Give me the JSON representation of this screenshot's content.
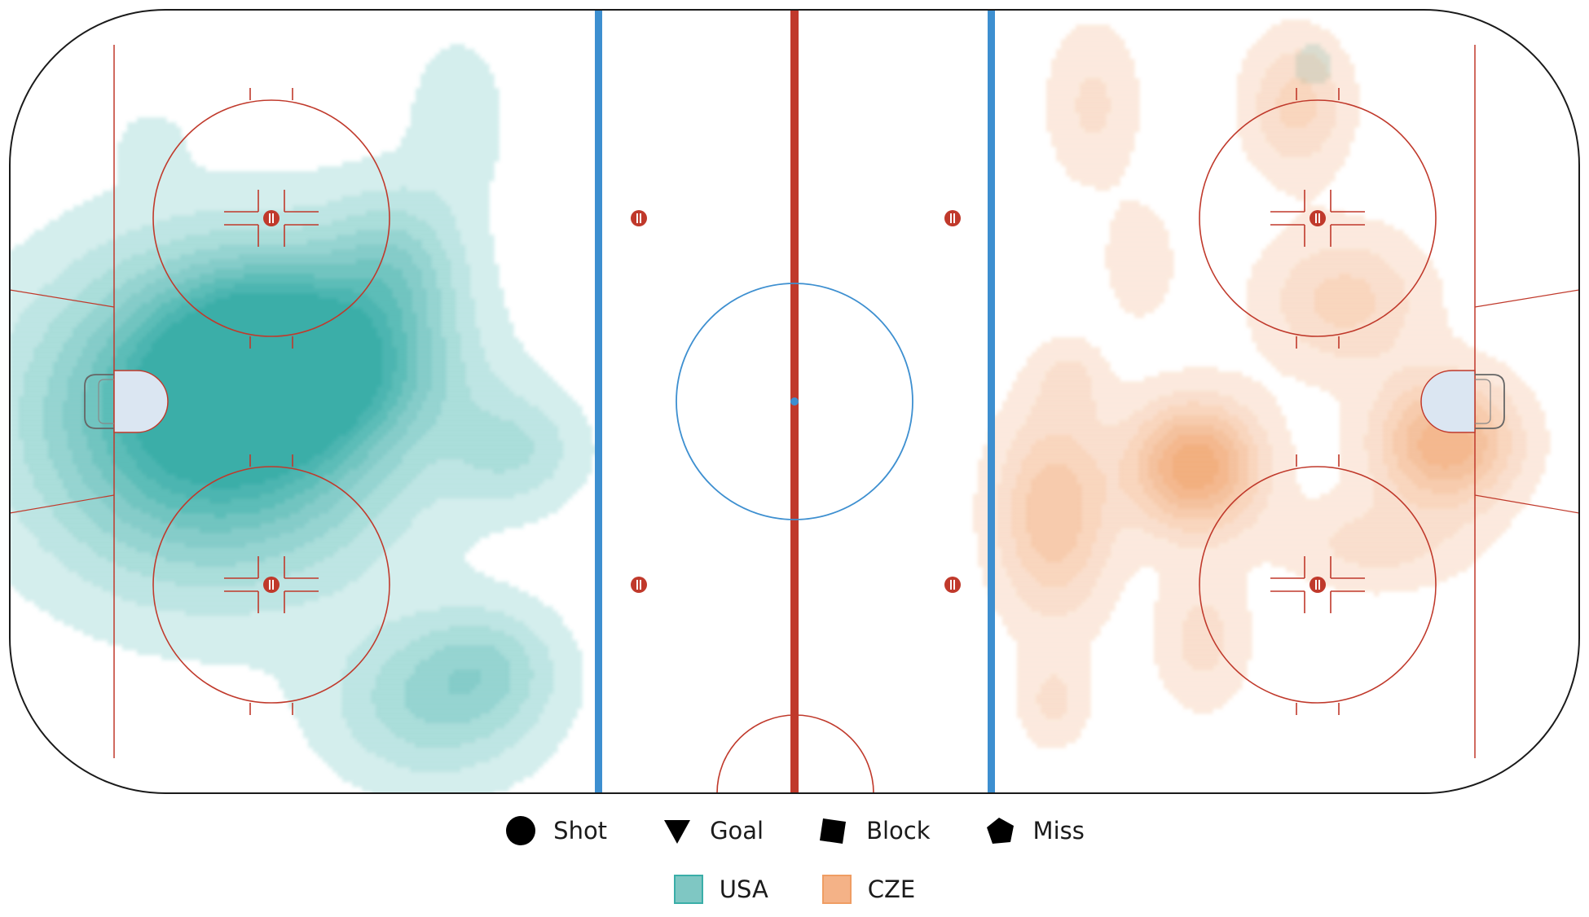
{
  "chart_data": {
    "type": "heatmap",
    "subtype": "hockey-rink shot density",
    "teams": [
      {
        "name": "USA",
        "color": "#3aaea8",
        "attacks": "left",
        "hotspots": [
          {
            "x": 0.13,
            "y": 0.52,
            "intensity": 1.0,
            "sx": 0.075,
            "sy": 0.13
          },
          {
            "x": 0.175,
            "y": 0.44,
            "intensity": 0.75,
            "sx": 0.05,
            "sy": 0.08
          },
          {
            "x": 0.245,
            "y": 0.33,
            "intensity": 0.35,
            "sx": 0.03,
            "sy": 0.07
          },
          {
            "x": 0.32,
            "y": 0.56,
            "intensity": 0.25,
            "sx": 0.03,
            "sy": 0.05
          },
          {
            "x": 0.27,
            "y": 0.88,
            "intensity": 0.35,
            "sx": 0.045,
            "sy": 0.07
          },
          {
            "x": 0.305,
            "y": 0.83,
            "intensity": 0.22,
            "sx": 0.03,
            "sy": 0.05
          },
          {
            "x": 0.285,
            "y": 0.14,
            "intensity": 0.15,
            "sx": 0.02,
            "sy": 0.07
          },
          {
            "x": 0.23,
            "y": 0.47,
            "intensity": 0.15,
            "sx": 0.05,
            "sy": 0.05
          },
          {
            "x": 0.09,
            "y": 0.17,
            "intensity": 0.1,
            "sx": 0.015,
            "sy": 0.03
          },
          {
            "x": 0.83,
            "y": 0.07,
            "intensity": 0.1,
            "sx": 0.012,
            "sy": 0.025
          },
          {
            "x": 0.915,
            "y": 0.5,
            "intensity": 0.1,
            "sx": 0.012,
            "sy": 0.03
          }
        ]
      },
      {
        "name": "CZE",
        "color": "#ef9d63",
        "attacks": "right",
        "hotspots": [
          {
            "x": 0.755,
            "y": 0.58,
            "intensity": 0.75,
            "sx": 0.028,
            "sy": 0.055
          },
          {
            "x": 0.915,
            "y": 0.55,
            "intensity": 0.65,
            "sx": 0.03,
            "sy": 0.055
          },
          {
            "x": 0.665,
            "y": 0.64,
            "intensity": 0.45,
            "sx": 0.025,
            "sy": 0.09
          },
          {
            "x": 0.85,
            "y": 0.37,
            "intensity": 0.3,
            "sx": 0.035,
            "sy": 0.06
          },
          {
            "x": 0.82,
            "y": 0.12,
            "intensity": 0.3,
            "sx": 0.022,
            "sy": 0.06
          },
          {
            "x": 0.69,
            "y": 0.12,
            "intensity": 0.18,
            "sx": 0.02,
            "sy": 0.07
          },
          {
            "x": 0.72,
            "y": 0.32,
            "intensity": 0.15,
            "sx": 0.015,
            "sy": 0.05
          },
          {
            "x": 0.76,
            "y": 0.8,
            "intensity": 0.2,
            "sx": 0.02,
            "sy": 0.06
          },
          {
            "x": 0.665,
            "y": 0.88,
            "intensity": 0.18,
            "sx": 0.015,
            "sy": 0.04
          },
          {
            "x": 0.87,
            "y": 0.68,
            "intensity": 0.2,
            "sx": 0.04,
            "sy": 0.04
          },
          {
            "x": 0.675,
            "y": 0.47,
            "intensity": 0.15,
            "sx": 0.015,
            "sy": 0.035
          }
        ]
      }
    ],
    "legend": {
      "symbols": [
        {
          "label": "Shot",
          "shape": "circle"
        },
        {
          "label": "Goal",
          "shape": "triangle-down"
        },
        {
          "label": "Block",
          "shape": "square"
        },
        {
          "label": "Miss",
          "shape": "pentagon"
        }
      ],
      "teams": [
        {
          "label": "USA",
          "fill": "#7fc7c3",
          "stroke": "#3aaea8"
        },
        {
          "label": "CZE",
          "fill": "#f4b287",
          "stroke": "#ef9d63"
        }
      ]
    },
    "rink_colors": {
      "boards": "#1a1a1a",
      "red_line": "#c0392b",
      "blue_line": "#3d8fd0",
      "center_circle": "#3d8fd0"
    }
  }
}
